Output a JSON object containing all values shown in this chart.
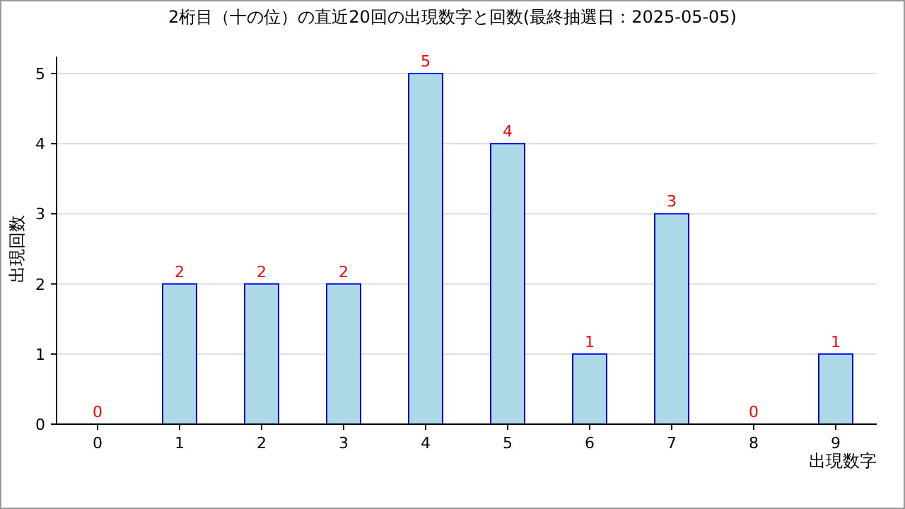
{
  "chart_data": {
    "type": "bar",
    "title": "2桁目（十の位）の直近20回の出現数字と回数(最終抽選日：2025-05-05)",
    "xlabel": "出現数字",
    "ylabel": "出現回数",
    "categories": [
      "0",
      "1",
      "2",
      "3",
      "4",
      "5",
      "6",
      "7",
      "8",
      "9"
    ],
    "values": [
      0,
      2,
      2,
      2,
      5,
      4,
      1,
      3,
      0,
      1
    ],
    "color": "#add8e6",
    "ylim": [
      0,
      5
    ],
    "yticks": [
      0,
      1,
      2,
      3,
      4,
      5
    ],
    "grid": "y",
    "data_labels": true
  }
}
